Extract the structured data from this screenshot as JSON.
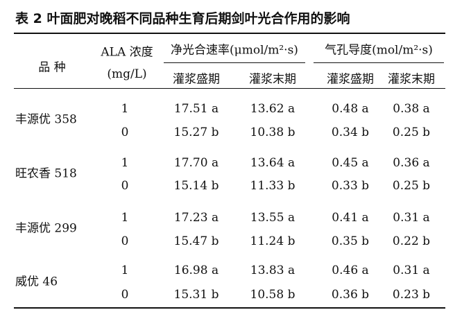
{
  "title": "表 2  叶面肥对晚稻不同品种生育后期剑叶光合作用的影响",
  "header": {
    "variety": "品 种",
    "ala": "ALA 浓度",
    "ala_unit": "(mg/L)",
    "pn": "净光合速率(μmol/m²·s)",
    "gs": "气孔导度(mol/m²·s)",
    "sub": [
      "灌浆盛期",
      "灌浆末期",
      "灌浆盛期",
      "灌浆末期"
    ]
  },
  "groups": [
    {
      "variety": "丰源优 358",
      "rows": [
        [
          "1",
          "17.51 a",
          "13.62 a",
          "0.48 a",
          "0.38 a"
        ],
        [
          "0",
          "15.27 b",
          "10.38 b",
          "0.34 b",
          "0.25 b"
        ]
      ]
    },
    {
      "variety": "旺农香 518",
      "rows": [
        [
          "1",
          "17.70 a",
          "13.64 a",
          "0.45 a",
          "0.36 a"
        ],
        [
          "0",
          "15.14 b",
          "11.33 b",
          "0.33 b",
          "0.25 b"
        ]
      ]
    },
    {
      "variety": "丰源优 299",
      "rows": [
        [
          "1",
          "17.23 a",
          "13.55 a",
          "0.41 a",
          "0.31 a"
        ],
        [
          "0",
          "15.47 b",
          "11.24 b",
          "0.35 b",
          "0.22 b"
        ]
      ]
    },
    {
      "variety": "威优 46",
      "rows": [
        [
          "1",
          "16.98 a",
          "13.83 a",
          "0.46 a",
          "0.31 a"
        ],
        [
          "0",
          "15.31 b",
          "10.58 b",
          "0.36 b",
          "0.23 b"
        ]
      ]
    }
  ]
}
